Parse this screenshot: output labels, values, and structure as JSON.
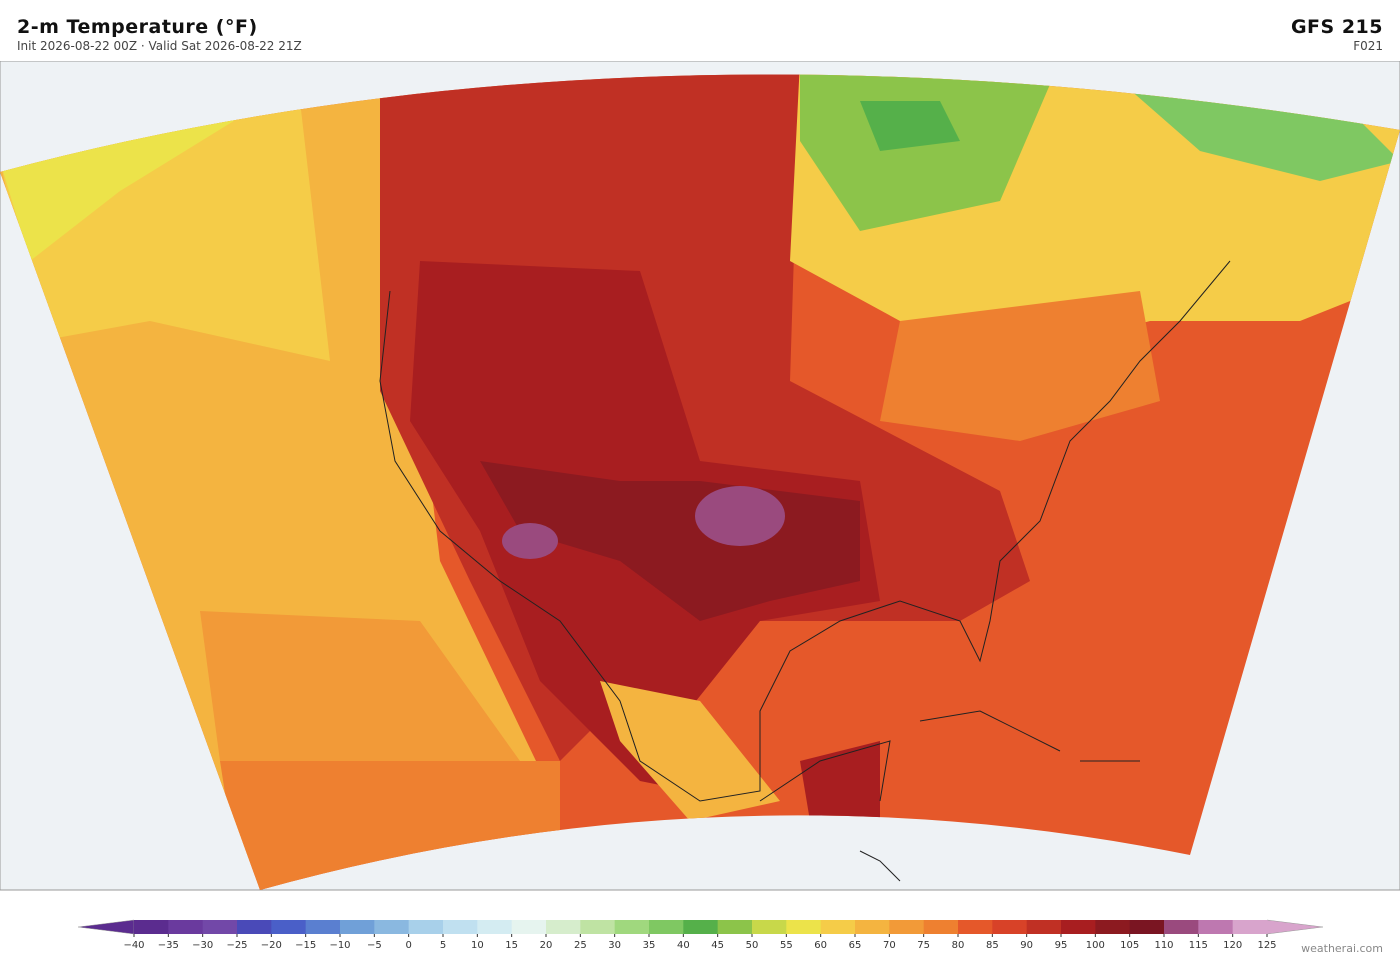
{
  "header": {
    "title": "2-m Temperature  (°F)",
    "subtitle": "Init 2026-08-22 00Z  ·  Valid Sat 2026-08-22 21Z",
    "model": "GFS  215",
    "forecast_hour": "F021"
  },
  "colorbar": {
    "ticks": [
      {
        "value": -40,
        "label": "−40"
      },
      {
        "value": -35,
        "label": "−35"
      },
      {
        "value": -30,
        "label": "−30"
      },
      {
        "value": -25,
        "label": "−25"
      },
      {
        "value": -20,
        "label": "−20"
      },
      {
        "value": -15,
        "label": "−15"
      },
      {
        "value": -10,
        "label": "−10"
      },
      {
        "value": -5,
        "label": "−5"
      },
      0,
      5,
      10,
      15,
      20,
      25,
      30,
      35,
      40,
      45,
      50,
      55,
      60,
      65,
      70,
      75,
      80,
      85,
      90,
      95,
      100,
      105,
      110,
      115,
      120,
      125
    ],
    "colors": [
      "#5b2c8f",
      "#6a3a9e",
      "#7248a8",
      "#4a4ab8",
      "#4a5fc8",
      "#5a7fd0",
      "#70a0d8",
      "#8ab8e0",
      "#a8d0ea",
      "#c0e0f0",
      "#d4ecf2",
      "#e6f4ef",
      "#d6edcc",
      "#bfe3a3",
      "#a0d87e",
      "#7fc862",
      "#55b04a",
      "#8cc44a",
      "#c8d84a",
      "#ece34a",
      "#f5cc48",
      "#f4b440",
      "#f29a38",
      "#ee8030",
      "#e5582a",
      "#d84228",
      "#c03024",
      "#a81e20",
      "#8c1a20",
      "#7a1522",
      "#9a4a7e",
      "#be78b0",
      "#d8a4cc"
    ]
  },
  "footer": {
    "credit": "weatherai.com"
  }
}
